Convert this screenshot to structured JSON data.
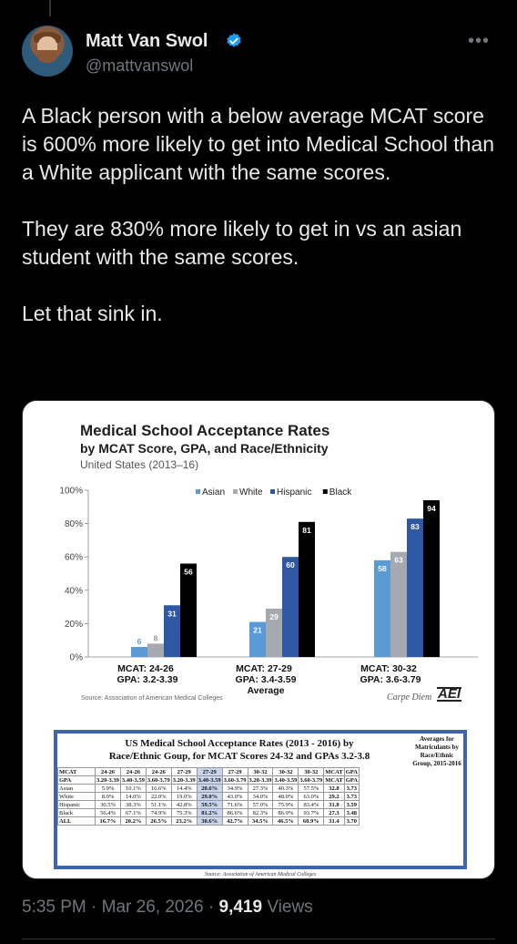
{
  "author": {
    "name": "Matt Van Swol",
    "handle": "@mattvanswol"
  },
  "more_label": "•••",
  "tweet_text": "A Black person with a below average MCAT score is 600% more likely to get into Medical School than a White applicant with the same scores.\n\nThey are 830% more likely to get in vs an asian student with the same scores.\n\nLet that sink in.",
  "image": {
    "title": "Medical School Acceptance Rates",
    "subtitle": "by MCAT Score, GPA, and Race/Ethnicity",
    "region": "United States (2013–16)",
    "source": "Source: Association of American Medical Colleges",
    "credit": "Carpe Diem",
    "logo_text": "AEI",
    "average_label": "Average"
  },
  "chart_data": {
    "type": "bar",
    "categories": [
      "MCAT: 24-26\nGPA: 3.2-3.39",
      "MCAT: 27-29\nGPA: 3.4-3.59",
      "MCAT: 30-32\nGPA: 3.6-3.79"
    ],
    "category_line1": [
      "MCAT: 24-26",
      "MCAT: 27-29",
      "MCAT: 30-32"
    ],
    "category_line2": [
      "GPA: 3.2-3.39",
      "GPA: 3.4-3.59",
      "GPA: 3.6-3.79"
    ],
    "series": [
      {
        "name": "Asian",
        "values": [
          6,
          21,
          58
        ],
        "color": "#5a9bd5"
      },
      {
        "name": "White",
        "values": [
          8,
          29,
          63
        ],
        "color": "#a6a9b0"
      },
      {
        "name": "Hispanic",
        "values": [
          31,
          60,
          83
        ],
        "color": "#2f58a4"
      },
      {
        "name": "Black",
        "values": [
          56,
          81,
          94
        ],
        "color": "#000000"
      }
    ],
    "yticks": [
      "0%",
      "20%",
      "40%",
      "60%",
      "80%",
      "100%"
    ],
    "ylim": [
      0,
      100
    ],
    "legend": "top-center"
  },
  "table": {
    "title1": "US Medical School Acceptance Rates (2013 - 2016) by",
    "title2": "Race/Ethnic Goup, for MCAT Scores 24-32 and GPAs 3.2-3.8",
    "right_header": "Averages for Matriculants by Race/Ethnic Group, 2015-2016",
    "mcat_row": [
      "MCAT",
      "24-26",
      "24-26",
      "24-26",
      "27-29",
      "27-29",
      "27-29",
      "30-32",
      "30-32",
      "30-32",
      "MCAT",
      "GPA"
    ],
    "gpa_row": [
      "GPA",
      "3.20-3.39",
      "3.40-3.59",
      "3.60-3.79",
      "3.20-3.39",
      "3.40-3.59",
      "3.60-3.79",
      "3.20-3.39",
      "3.40-3.59",
      "3.60-3.79",
      "MCAT",
      "GPA"
    ],
    "rows": [
      [
        "Asian",
        "5.9%",
        "10.1%",
        "16.6%",
        "14.4%",
        "20.6%",
        "34.9%",
        "27.3%",
        "40.3%",
        "57.5%",
        "32.8",
        "3.73"
      ],
      [
        "White",
        "8.0%",
        "14.0%",
        "22.0%",
        "19.0%",
        "29.0%",
        "43.0%",
        "34.0%",
        "48.0%",
        "63.0%",
        "29.2",
        "3.73"
      ],
      [
        "Hispanic",
        "30.5%",
        "38.3%",
        "51.1%",
        "42.8%",
        "59.5%",
        "71.6%",
        "57.0%",
        "75.9%",
        "83.4%",
        "31.8",
        "3.59"
      ],
      [
        "Black",
        "56.4%",
        "67.1%",
        "74.9%",
        "75.3%",
        "81.2%",
        "86.6%",
        "82.3%",
        "86.9%",
        "93.7%",
        "27.3",
        "3.48"
      ],
      [
        "ALL",
        "16.7%",
        "20.2%",
        "26.5%",
        "23.2%",
        "30.6%",
        "42.7%",
        "34.5%",
        "46.5%",
        "60.9%",
        "31.4",
        "3.70"
      ]
    ],
    "source": "Source: Association of American Medical Colleges"
  },
  "meta": {
    "time": "5:35 PM",
    "date": "Mar 26, 2026",
    "views_count": "9,419",
    "views_label": "Views",
    "sep": "·"
  }
}
